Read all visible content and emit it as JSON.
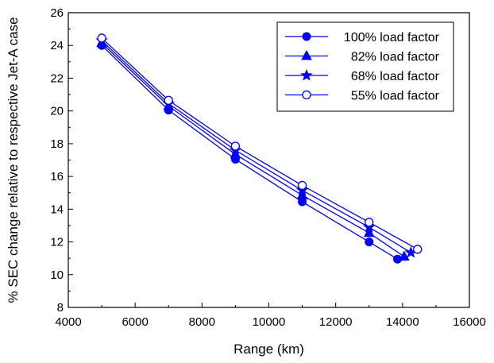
{
  "chart_data": {
    "type": "line",
    "xlabel": "Range (km)",
    "ylabel": "% SEC change relative to respective Jet-A case",
    "xlim": [
      4000,
      16000
    ],
    "ylim": [
      8,
      26
    ],
    "xticks": [
      "4000",
      "6000",
      "8000",
      "10000",
      "12000",
      "14000",
      "16000"
    ],
    "yticks": [
      "8",
      "10",
      "12",
      "14",
      "16",
      "18",
      "20",
      "22",
      "24",
      "26"
    ],
    "grid": false,
    "legend_position": "top-right",
    "line_color": "#0000ff",
    "series": [
      {
        "name": "100% load factor",
        "marker": "filled-circle",
        "points": [
          [
            5000,
            24.0
          ],
          [
            7000,
            20.05
          ],
          [
            9000,
            17.05
          ],
          [
            11000,
            14.45
          ],
          [
            13000,
            12.0
          ],
          [
            13850,
            10.95
          ]
        ]
      },
      {
        "name": "82% load factor",
        "marker": "filled-triangle",
        "points": [
          [
            5000,
            24.15
          ],
          [
            7000,
            20.3
          ],
          [
            9000,
            17.35
          ],
          [
            11000,
            14.85
          ],
          [
            13000,
            12.55
          ],
          [
            14050,
            11.1
          ]
        ]
      },
      {
        "name": "68% load factor",
        "marker": "filled-star",
        "points": [
          [
            5000,
            24.3
          ],
          [
            7000,
            20.45
          ],
          [
            9000,
            17.6
          ],
          [
            11000,
            15.15
          ],
          [
            13000,
            12.9
          ],
          [
            14250,
            11.35
          ]
        ]
      },
      {
        "name": "55% load factor",
        "marker": "open-circle",
        "points": [
          [
            5000,
            24.45
          ],
          [
            7000,
            20.65
          ],
          [
            9000,
            17.85
          ],
          [
            11000,
            15.45
          ],
          [
            13000,
            13.2
          ],
          [
            14450,
            11.55
          ]
        ]
      }
    ]
  }
}
